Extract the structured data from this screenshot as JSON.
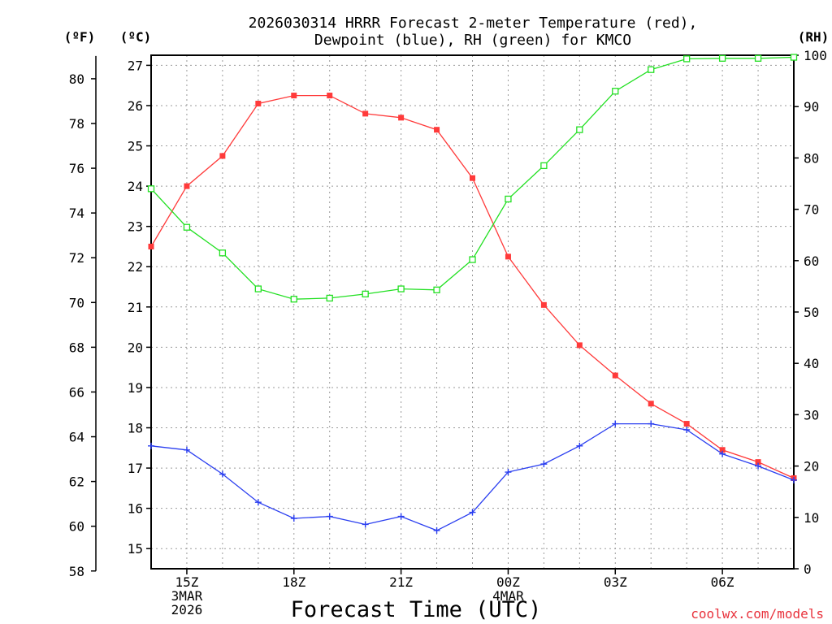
{
  "colors": {
    "temperature": "#ff3a3a",
    "dewpoint": "#2a3ef0",
    "rh": "#22e022",
    "grid": "#9a9a9a",
    "source": "#e8323c"
  },
  "chart_data": {
    "type": "line",
    "title_line1": "2026030314 HRRR Forecast 2-meter Temperature (red),",
    "title_line2": "Dewpoint (blue), RH (green) for KMCO",
    "xlabel": "Forecast Time (UTC)",
    "source": "coolwx.com/models",
    "units": {
      "f": "(ºF)",
      "c": "(ºC)",
      "rh": "(RH)"
    },
    "hours": [
      14,
      15,
      16,
      17,
      18,
      19,
      20,
      21,
      22,
      23,
      24,
      25,
      26,
      27,
      28,
      29,
      30,
      31,
      32
    ],
    "x_ticks": [
      {
        "hour": 15,
        "lines": [
          "15Z",
          "3MAR",
          "2026"
        ]
      },
      {
        "hour": 18,
        "lines": [
          "18Z"
        ]
      },
      {
        "hour": 21,
        "lines": [
          "21Z"
        ]
      },
      {
        "hour": 24,
        "lines": [
          "00Z",
          "4MAR"
        ]
      },
      {
        "hour": 27,
        "lines": [
          "03Z"
        ]
      },
      {
        "hour": 30,
        "lines": [
          "06Z"
        ]
      }
    ],
    "series": [
      {
        "name": "Temperature (°C)",
        "axis": "c",
        "values": [
          22.5,
          24.0,
          24.75,
          26.05,
          26.25,
          26.25,
          25.8,
          25.7,
          25.4,
          24.2,
          22.25,
          21.05,
          20.05,
          19.3,
          18.6,
          18.1,
          17.45,
          17.15,
          16.75
        ]
      },
      {
        "name": "Dewpoint (°C)",
        "axis": "c",
        "values": [
          17.55,
          17.45,
          16.85,
          16.15,
          15.75,
          15.8,
          15.6,
          15.8,
          15.45,
          15.9,
          16.9,
          17.1,
          17.55,
          18.1,
          18.1,
          17.95,
          17.35,
          17.05,
          16.7
        ]
      },
      {
        "name": "RH (%)",
        "axis": "rh",
        "values": [
          74,
          66.5,
          61.5,
          54.5,
          52.5,
          52.7,
          53.5,
          54.5,
          54.3,
          60.2,
          72,
          78.5,
          85.5,
          93,
          97.2,
          99.3,
          99.4,
          99.4,
          99.6
        ]
      }
    ],
    "y_celsius": {
      "range": [
        14.5,
        27.25
      ],
      "ticks": [
        15,
        16,
        17,
        18,
        19,
        20,
        21,
        22,
        23,
        24,
        25,
        26,
        27
      ]
    },
    "y_fahrenheit": {
      "ticks": [
        58,
        60,
        62,
        64,
        66,
        68,
        70,
        72,
        74,
        76,
        78,
        80
      ]
    },
    "y_rh": {
      "range": [
        0,
        100
      ],
      "ticks": [
        0,
        10,
        20,
        30,
        40,
        50,
        60,
        70,
        80,
        90,
        100
      ]
    },
    "grid": true
  }
}
